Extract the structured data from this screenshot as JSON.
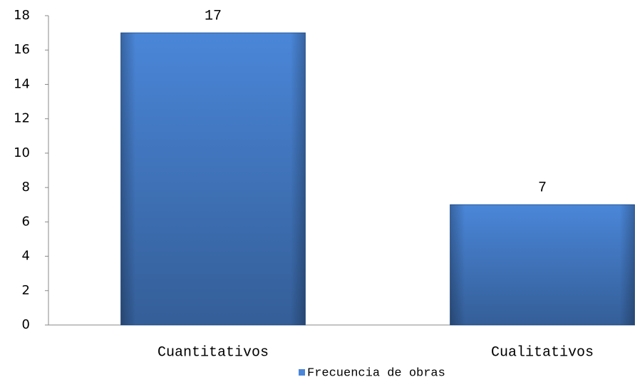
{
  "chart_data": {
    "type": "bar",
    "categories": [
      "Cuantitativos",
      "Cualitativos"
    ],
    "values": [
      17,
      7
    ],
    "series_name": "Frecuencia de obras",
    "color": "#4a86d8",
    "ylim": [
      0,
      18
    ],
    "yticks": [
      0,
      2,
      4,
      6,
      8,
      10,
      12,
      14,
      16,
      18
    ],
    "grid": false
  }
}
